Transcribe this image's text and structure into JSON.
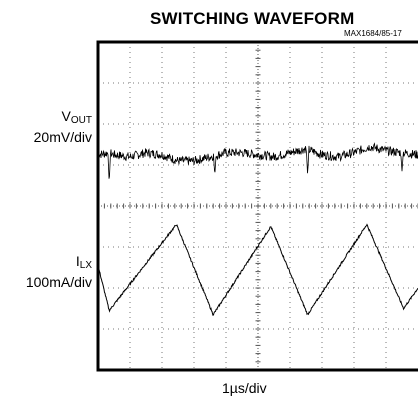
{
  "chart_data": {
    "type": "line",
    "title": "SWITCHING WAVEFORM",
    "part_number": "MAX1684/85-17",
    "x_label": "1µs/div",
    "y_labels": [
      {
        "main": "V",
        "sub": "OUT",
        "scale": "20mV/div"
      },
      {
        "main": "I",
        "sub": "LX",
        "scale": "100mA/div"
      }
    ],
    "grid": true,
    "x_divisions": 10,
    "y_divisions": 8,
    "series": [
      {
        "x_div": [
          0,
          0.35,
          0.5,
          1.0,
          1.5,
          2.0,
          2.5,
          3.0,
          3.5,
          4.0,
          4.5,
          5.0,
          5.5,
          6.0,
          6.5,
          7.0,
          7.5,
          8.0,
          8.5,
          9.0,
          9.5,
          10.0
        ],
        "y_div": [
          5.25,
          5.3,
          5.25,
          5.2,
          5.3,
          5.25,
          5.1,
          5.1,
          5.2,
          5.3,
          5.3,
          5.25,
          5.2,
          5.3,
          5.4,
          5.25,
          5.2,
          5.3,
          5.45,
          5.35,
          5.3,
          5.25
        ],
        "spikes": [
          {
            "x_div": 0.35,
            "y_div": 4.55
          },
          {
            "x_div": 3.65,
            "y_div": 4.75
          },
          {
            "x_div": 6.55,
            "y_div": 4.75
          },
          {
            "x_div": 9.5,
            "y_div": 4.85
          }
        ]
      },
      {
        "x_div": [
          0,
          0.35,
          2.45,
          3.6,
          5.4,
          6.55,
          8.4,
          9.55,
          10.0
        ],
        "y_div": [
          2.55,
          1.45,
          3.55,
          1.35,
          3.5,
          1.35,
          3.55,
          1.5,
          2.0
        ]
      }
    ]
  }
}
